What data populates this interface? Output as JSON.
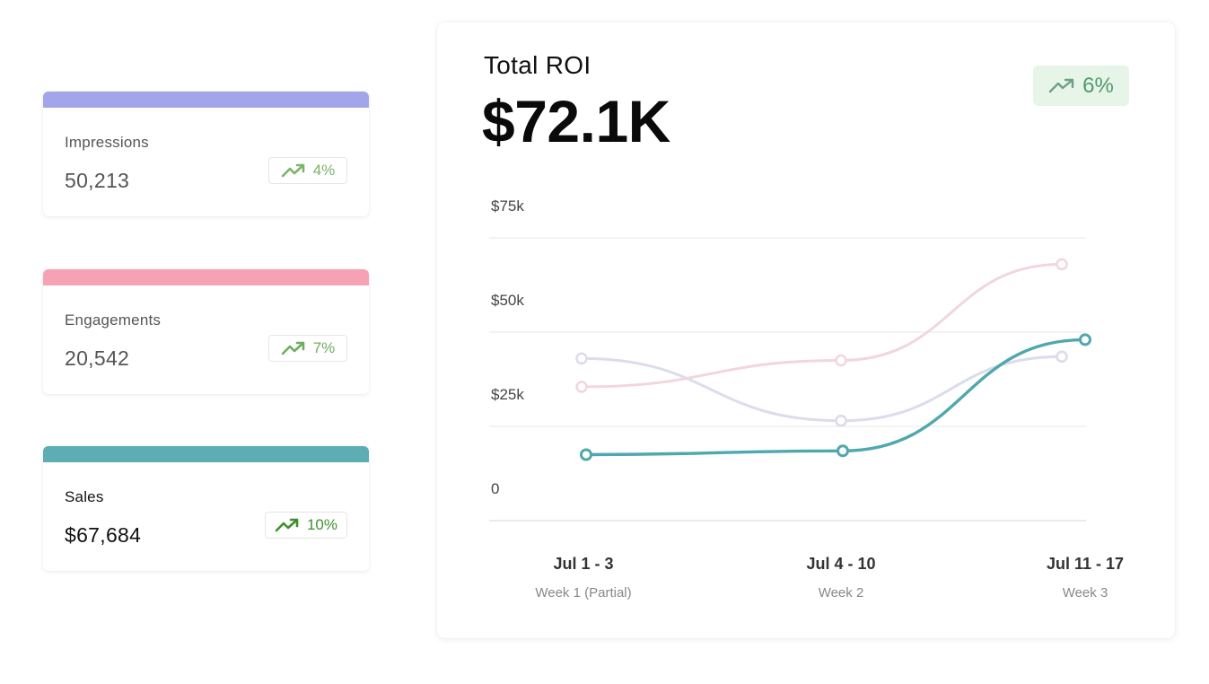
{
  "cards": [
    {
      "label": "Impressions",
      "value": "50,213",
      "change": "4%",
      "bar_color": "#a2a5ea",
      "trend_color": "#7cb36a",
      "active": false
    },
    {
      "label": "Engagements",
      "value": "20,542",
      "change": "7%",
      "bar_color": "#f7a1b5",
      "trend_color": "#6fad5e",
      "active": false
    },
    {
      "label": "Sales",
      "value": "$67,684",
      "change": "10%",
      "bar_color": "#5daeb4",
      "trend_color": "#3f8f2f",
      "active": true
    }
  ],
  "summary": {
    "title": "Total ROI",
    "total": "$72.1K",
    "change": "6%",
    "trend_icon": "trending-up-icon"
  },
  "chart_data": {
    "type": "line",
    "categories": [
      "Jul 1 - 3",
      "Jul 4 - 10",
      "Jul 11 - 17"
    ],
    "category_sublabels": [
      "Week 1 (Partial)",
      "Week 2",
      "Week 3"
    ],
    "y_tick_labels": [
      "0",
      "$25k",
      "$50k",
      "$75k"
    ],
    "ylim": [
      0,
      75000
    ],
    "grid": true,
    "series": [
      {
        "values": [
          17500,
          18500,
          48000
        ],
        "color": "#4fa8ad",
        "emphasis": true
      },
      {
        "values": [
          43000,
          26500,
          43500
        ],
        "color": "#dcdcec",
        "emphasis": false
      },
      {
        "values": [
          35500,
          42500,
          68000
        ],
        "color": "#f2d6de",
        "emphasis": false
      }
    ]
  }
}
